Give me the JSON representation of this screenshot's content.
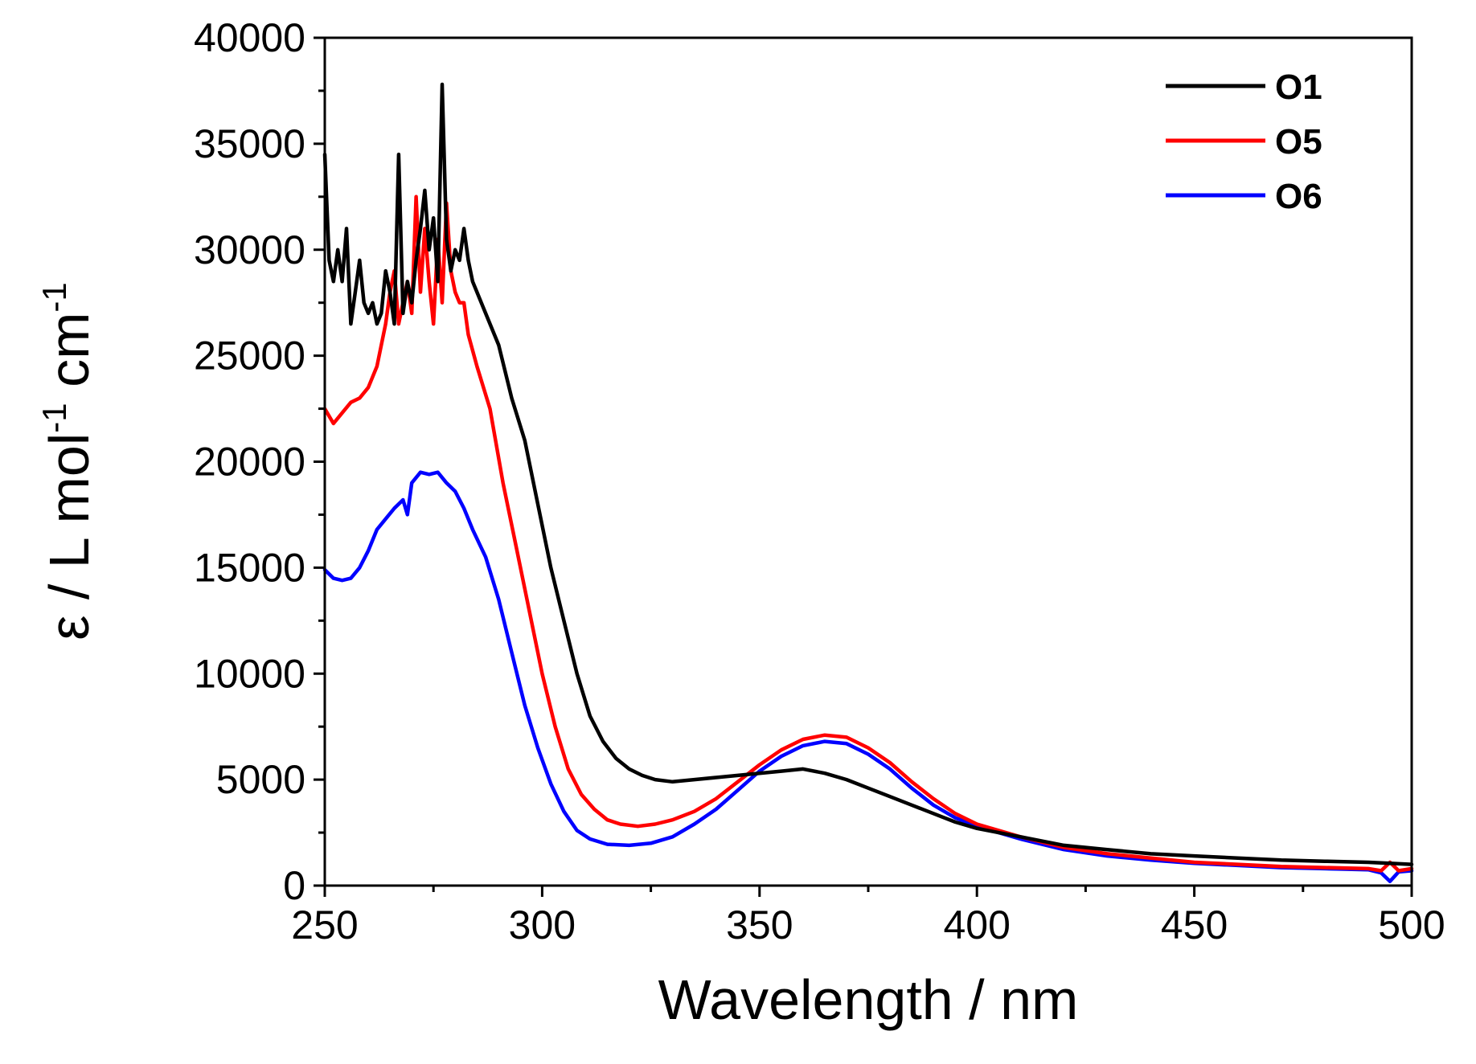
{
  "chart_data": {
    "type": "line",
    "xlabel": "Wavelength / nm",
    "ylabel": "ε / L mol",
    "ylabel_sup1": "-1",
    "ylabel_mid": " cm",
    "ylabel_sup2": "-1",
    "xlim": [
      250,
      500
    ],
    "ylim": [
      0,
      40000
    ],
    "x_ticks": [
      250,
      300,
      350,
      400,
      450,
      500
    ],
    "y_ticks": [
      0,
      5000,
      10000,
      15000,
      20000,
      25000,
      30000,
      35000,
      40000
    ],
    "legend_position": "top-right",
    "grid": false,
    "series": [
      {
        "name": "O1",
        "color": "#000000",
        "points": [
          [
            250,
            34500
          ],
          [
            251,
            29500
          ],
          [
            252,
            28500
          ],
          [
            253,
            30000
          ],
          [
            254,
            28500
          ],
          [
            255,
            31000
          ],
          [
            256,
            26500
          ],
          [
            257,
            28000
          ],
          [
            258,
            29500
          ],
          [
            259,
            27500
          ],
          [
            260,
            27000
          ],
          [
            261,
            27500
          ],
          [
            262,
            26500
          ],
          [
            263,
            27000
          ],
          [
            264,
            29000
          ],
          [
            265,
            28000
          ],
          [
            266,
            26500
          ],
          [
            267,
            34500
          ],
          [
            268,
            27000
          ],
          [
            269,
            28500
          ],
          [
            270,
            27500
          ],
          [
            271,
            29500
          ],
          [
            272,
            31000
          ],
          [
            273,
            32800
          ],
          [
            274,
            30000
          ],
          [
            275,
            31500
          ],
          [
            276,
            28500
          ],
          [
            277,
            37800
          ],
          [
            278,
            30500
          ],
          [
            279,
            29000
          ],
          [
            280,
            30000
          ],
          [
            281,
            29500
          ],
          [
            282,
            31000
          ],
          [
            283,
            29500
          ],
          [
            284,
            28500
          ],
          [
            285,
            28000
          ],
          [
            287,
            27000
          ],
          [
            290,
            25500
          ],
          [
            293,
            23000
          ],
          [
            296,
            21000
          ],
          [
            299,
            18000
          ],
          [
            302,
            15000
          ],
          [
            305,
            12500
          ],
          [
            308,
            10000
          ],
          [
            311,
            8000
          ],
          [
            314,
            6800
          ],
          [
            317,
            6000
          ],
          [
            320,
            5500
          ],
          [
            323,
            5200
          ],
          [
            326,
            5000
          ],
          [
            330,
            4900
          ],
          [
            335,
            5000
          ],
          [
            340,
            5100
          ],
          [
            345,
            5200
          ],
          [
            350,
            5300
          ],
          [
            355,
            5400
          ],
          [
            360,
            5500
          ],
          [
            365,
            5300
          ],
          [
            370,
            5000
          ],
          [
            375,
            4600
          ],
          [
            380,
            4200
          ],
          [
            385,
            3800
          ],
          [
            390,
            3400
          ],
          [
            395,
            3000
          ],
          [
            400,
            2700
          ],
          [
            410,
            2300
          ],
          [
            420,
            1900
          ],
          [
            430,
            1700
          ],
          [
            440,
            1500
          ],
          [
            450,
            1400
          ],
          [
            460,
            1300
          ],
          [
            470,
            1200
          ],
          [
            480,
            1150
          ],
          [
            490,
            1100
          ],
          [
            495,
            1050
          ],
          [
            500,
            1000
          ]
        ]
      },
      {
        "name": "O5",
        "color": "#ff0000",
        "points": [
          [
            250,
            22500
          ],
          [
            252,
            21800
          ],
          [
            254,
            22300
          ],
          [
            256,
            22800
          ],
          [
            258,
            23000
          ],
          [
            260,
            23500
          ],
          [
            262,
            24500
          ],
          [
            264,
            26500
          ],
          [
            265,
            28000
          ],
          [
            266,
            29000
          ],
          [
            267,
            26500
          ],
          [
            268,
            27500
          ],
          [
            269,
            28500
          ],
          [
            270,
            27000
          ],
          [
            271,
            32500
          ],
          [
            272,
            28000
          ],
          [
            273,
            31000
          ],
          [
            274,
            28500
          ],
          [
            275,
            26500
          ],
          [
            276,
            30500
          ],
          [
            277,
            27500
          ],
          [
            278,
            32200
          ],
          [
            279,
            29000
          ],
          [
            280,
            28000
          ],
          [
            281,
            27500
          ],
          [
            282,
            27500
          ],
          [
            283,
            26000
          ],
          [
            285,
            24500
          ],
          [
            288,
            22500
          ],
          [
            291,
            19000
          ],
          [
            294,
            16000
          ],
          [
            297,
            13000
          ],
          [
            300,
            10000
          ],
          [
            303,
            7500
          ],
          [
            306,
            5500
          ],
          [
            309,
            4300
          ],
          [
            312,
            3600
          ],
          [
            315,
            3100
          ],
          [
            318,
            2900
          ],
          [
            322,
            2800
          ],
          [
            326,
            2900
          ],
          [
            330,
            3100
          ],
          [
            335,
            3500
          ],
          [
            340,
            4100
          ],
          [
            345,
            4900
          ],
          [
            350,
            5700
          ],
          [
            355,
            6400
          ],
          [
            360,
            6900
          ],
          [
            365,
            7100
          ],
          [
            370,
            7000
          ],
          [
            375,
            6500
          ],
          [
            380,
            5800
          ],
          [
            385,
            4900
          ],
          [
            390,
            4100
          ],
          [
            395,
            3400
          ],
          [
            400,
            2900
          ],
          [
            410,
            2300
          ],
          [
            420,
            1800
          ],
          [
            430,
            1500
          ],
          [
            440,
            1300
          ],
          [
            450,
            1100
          ],
          [
            460,
            1000
          ],
          [
            470,
            900
          ],
          [
            480,
            850
          ],
          [
            490,
            800
          ],
          [
            493,
            700
          ],
          [
            495,
            1100
          ],
          [
            497,
            700
          ],
          [
            500,
            800
          ]
        ]
      },
      {
        "name": "O6",
        "color": "#0000ff",
        "points": [
          [
            250,
            14900
          ],
          [
            252,
            14500
          ],
          [
            254,
            14400
          ],
          [
            256,
            14500
          ],
          [
            258,
            15000
          ],
          [
            260,
            15800
          ],
          [
            262,
            16800
          ],
          [
            264,
            17300
          ],
          [
            266,
            17800
          ],
          [
            268,
            18200
          ],
          [
            269,
            17500
          ],
          [
            270,
            19000
          ],
          [
            272,
            19500
          ],
          [
            274,
            19400
          ],
          [
            276,
            19500
          ],
          [
            278,
            19000
          ],
          [
            280,
            18600
          ],
          [
            282,
            17800
          ],
          [
            284,
            16800
          ],
          [
            287,
            15500
          ],
          [
            290,
            13500
          ],
          [
            293,
            11000
          ],
          [
            296,
            8500
          ],
          [
            299,
            6500
          ],
          [
            302,
            4800
          ],
          [
            305,
            3500
          ],
          [
            308,
            2600
          ],
          [
            311,
            2200
          ],
          [
            315,
            1950
          ],
          [
            320,
            1900
          ],
          [
            325,
            2000
          ],
          [
            330,
            2300
          ],
          [
            335,
            2900
          ],
          [
            340,
            3600
          ],
          [
            345,
            4500
          ],
          [
            350,
            5400
          ],
          [
            355,
            6100
          ],
          [
            360,
            6600
          ],
          [
            365,
            6800
          ],
          [
            370,
            6700
          ],
          [
            375,
            6200
          ],
          [
            380,
            5500
          ],
          [
            385,
            4600
          ],
          [
            390,
            3800
          ],
          [
            395,
            3200
          ],
          [
            400,
            2800
          ],
          [
            410,
            2200
          ],
          [
            420,
            1700
          ],
          [
            430,
            1400
          ],
          [
            440,
            1200
          ],
          [
            450,
            1050
          ],
          [
            460,
            950
          ],
          [
            470,
            850
          ],
          [
            480,
            800
          ],
          [
            490,
            750
          ],
          [
            493,
            600
          ],
          [
            495,
            200
          ],
          [
            497,
            650
          ],
          [
            500,
            700
          ]
        ]
      }
    ]
  }
}
